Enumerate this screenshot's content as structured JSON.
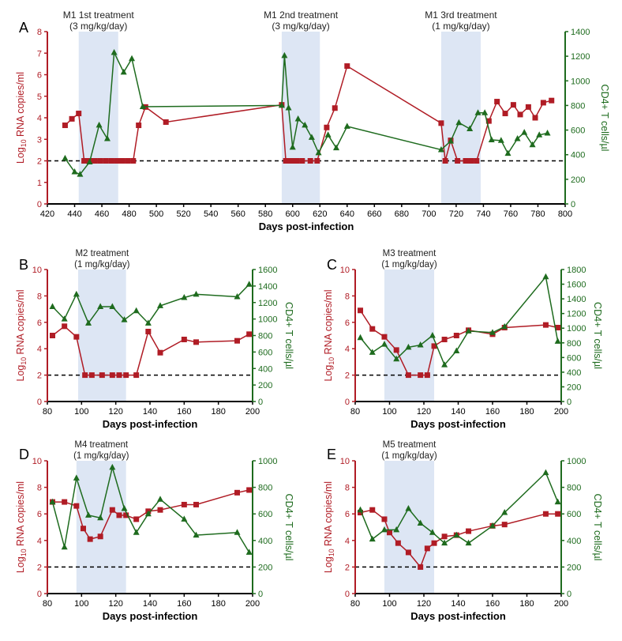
{
  "colors": {
    "rna": "#b01c25",
    "cd4": "#1e6b1e",
    "shade": "#dde6f4",
    "axis": "#000000"
  },
  "chart_data": [
    {
      "panel": "A",
      "type": "line",
      "xlabel": "Days post-infection",
      "ylabel_left": "Log10 RNA copies/ml",
      "ylabel_right": "CD4+ T cells/µl",
      "xlim": [
        420,
        800
      ],
      "ylim_left": [
        0,
        8
      ],
      "ylim_right": [
        0,
        1400
      ],
      "xticks": [
        420,
        440,
        460,
        480,
        500,
        520,
        540,
        560,
        580,
        600,
        620,
        640,
        660,
        680,
        700,
        720,
        740,
        760,
        780,
        800
      ],
      "yticks_left": [
        0,
        1,
        2,
        3,
        4,
        5,
        6,
        7,
        8
      ],
      "yticks_right": [
        0,
        200,
        400,
        600,
        800,
        1000,
        1200,
        1400
      ],
      "detection_limit": 2,
      "treatments": [
        {
          "label1": "M1 1st treatment",
          "label2": "(3 mg/kg/day)",
          "start": 443,
          "end": 472
        },
        {
          "label1": "M1 2nd treatment",
          "label2": "(3 mg/kg/day)",
          "start": 592,
          "end": 620
        },
        {
          "label1": "M1 3rd treatment",
          "label2": "(1 mg/kg/day)",
          "start": 709,
          "end": 738
        }
      ],
      "series": [
        {
          "axis": "left",
          "marker": "square",
          "x": [
            433,
            438,
            443,
            447,
            451,
            455,
            459,
            463,
            467,
            471,
            475,
            479,
            483,
            487,
            492,
            507,
            592,
            595,
            599,
            603,
            607,
            613,
            618,
            625,
            631,
            640,
            709,
            712,
            716,
            721,
            727,
            731,
            735,
            744,
            750,
            756,
            762,
            767,
            773,
            778,
            784,
            790
          ],
          "y": [
            3.65,
            3.95,
            4.2,
            2.0,
            2.0,
            2.0,
            2.0,
            2.0,
            2.0,
            2.0,
            2.0,
            2.0,
            2.0,
            3.65,
            4.5,
            3.8,
            4.6,
            2.0,
            2.0,
            2.0,
            2.0,
            2.0,
            2.0,
            3.55,
            4.45,
            6.4,
            3.75,
            2.0,
            2.95,
            2.0,
            2.0,
            2.0,
            2.0,
            3.85,
            4.75,
            4.2,
            4.6,
            4.15,
            4.5,
            4.0,
            4.7,
            4.8
          ]
        },
        {
          "axis": "right",
          "marker": "triangle",
          "x": [
            433,
            440,
            444,
            451,
            458,
            464,
            469,
            476,
            482,
            490,
            592,
            594,
            597,
            600,
            604,
            609,
            614,
            619,
            626,
            632,
            640,
            709,
            716,
            722,
            730,
            736,
            741,
            746,
            753,
            758,
            765,
            770,
            776,
            781,
            787
          ],
          "y": [
            370,
            260,
            240,
            340,
            640,
            530,
            1230,
            1070,
            1180,
            790,
            800,
            1205,
            780,
            460,
            690,
            640,
            540,
            415,
            560,
            455,
            630,
            440,
            510,
            660,
            610,
            740,
            740,
            520,
            515,
            410,
            530,
            580,
            480,
            560,
            575
          ]
        }
      ]
    },
    {
      "panel": "B",
      "type": "line",
      "xlabel": "Days post-infection",
      "ylabel_left": "Log10 RNA copies/ml",
      "ylabel_right": "CD4+ T cells/µl",
      "xlim": [
        80,
        200
      ],
      "ylim_left": [
        0,
        10
      ],
      "ylim_right": [
        0,
        1600
      ],
      "xticks": [
        80,
        100,
        120,
        140,
        160,
        180,
        200
      ],
      "yticks_left": [
        0,
        2,
        4,
        6,
        8,
        10
      ],
      "yticks_right": [
        0,
        200,
        400,
        600,
        800,
        1000,
        1200,
        1400,
        1600
      ],
      "detection_limit": 2,
      "treatments": [
        {
          "label1": "M2 treatment",
          "label2": "(1 mg/kg/day)",
          "start": 98,
          "end": 126
        }
      ],
      "series": [
        {
          "axis": "left",
          "marker": "square",
          "x": [
            83,
            90,
            97,
            102,
            106,
            112,
            118,
            122,
            126,
            132,
            139,
            146,
            160,
            167,
            191,
            198
          ],
          "y": [
            5.0,
            5.7,
            4.9,
            2.0,
            2.0,
            2.0,
            2.0,
            2.0,
            2.0,
            2.0,
            5.3,
            3.7,
            4.7,
            4.5,
            4.6,
            5.1
          ]
        },
        {
          "axis": "right",
          "marker": "triangle",
          "x": [
            83,
            90,
            97,
            104,
            111,
            118,
            125,
            132,
            139,
            146,
            160,
            167,
            191,
            198
          ],
          "y": [
            1150,
            1000,
            1300,
            950,
            1150,
            1150,
            990,
            1100,
            950,
            1160,
            1260,
            1300,
            1270,
            1420
          ]
        }
      ]
    },
    {
      "panel": "C",
      "type": "line",
      "xlabel": "Days post-infection",
      "ylabel_left": "Log10 RNA copies/ml",
      "ylabel_right": "CD4+ T cells/µl",
      "xlim": [
        80,
        200
      ],
      "ylim_left": [
        0,
        10
      ],
      "ylim_right": [
        0,
        1800
      ],
      "xticks": [
        80,
        100,
        120,
        140,
        160,
        180,
        200
      ],
      "yticks_left": [
        0,
        2,
        4,
        6,
        8,
        10
      ],
      "yticks_right": [
        0,
        200,
        400,
        600,
        800,
        1000,
        1200,
        1400,
        1600,
        1800
      ],
      "detection_limit": 2,
      "treatments": [
        {
          "label1": "M3 treatment",
          "label2": "(1 mg/kg/day)",
          "start": 97,
          "end": 126
        }
      ],
      "series": [
        {
          "axis": "left",
          "marker": "square",
          "x": [
            83,
            90,
            97,
            104,
            111,
            118,
            122,
            126,
            132,
            139,
            146,
            160,
            167,
            191,
            198
          ],
          "y": [
            6.9,
            5.5,
            4.9,
            3.9,
            2.0,
            2.0,
            2.0,
            4.2,
            4.7,
            5.0,
            5.4,
            5.1,
            5.6,
            5.8,
            5.6
          ]
        },
        {
          "axis": "right",
          "marker": "triangle",
          "x": [
            83,
            90,
            97,
            104,
            111,
            118,
            125,
            132,
            139,
            146,
            160,
            167,
            191,
            198
          ],
          "y": [
            870,
            670,
            780,
            580,
            740,
            770,
            900,
            500,
            690,
            960,
            940,
            1020,
            1700,
            820
          ]
        }
      ]
    },
    {
      "panel": "D",
      "type": "line",
      "xlabel": "Days post-infection",
      "ylabel_left": "Log10 RNA copies/ml",
      "ylabel_right": "CD4+ T cells/µl",
      "xlim": [
        80,
        200
      ],
      "ylim_left": [
        0,
        10
      ],
      "ylim_right": [
        0,
        1000
      ],
      "xticks": [
        80,
        100,
        120,
        140,
        160,
        180,
        200
      ],
      "yticks_left": [
        0,
        2,
        4,
        6,
        8,
        10
      ],
      "yticks_right": [
        0,
        200,
        400,
        600,
        800,
        1000
      ],
      "detection_limit": 2,
      "treatments": [
        {
          "label1": "M4 treatment",
          "label2": "(1 mg/kg/day)",
          "start": 97,
          "end": 126
        }
      ],
      "series": [
        {
          "axis": "left",
          "marker": "square",
          "x": [
            83,
            90,
            97,
            101,
            105,
            111,
            118,
            122,
            126,
            132,
            139,
            146,
            160,
            167,
            191,
            198
          ],
          "y": [
            6.9,
            6.9,
            6.6,
            4.9,
            4.1,
            4.3,
            6.3,
            5.9,
            5.9,
            5.6,
            6.2,
            6.3,
            6.7,
            6.7,
            7.6,
            7.8
          ]
        },
        {
          "axis": "right",
          "marker": "triangle",
          "x": [
            83,
            90,
            97,
            104,
            111,
            118,
            125,
            132,
            139,
            146,
            160,
            167,
            191,
            198
          ],
          "y": [
            690,
            350,
            870,
            590,
            570,
            950,
            640,
            460,
            600,
            710,
            560,
            440,
            460,
            310
          ]
        }
      ]
    },
    {
      "panel": "E",
      "type": "line",
      "xlabel": "Days post-infection",
      "ylabel_left": "Log10 RNA copies/ml",
      "ylabel_right": "CD4+ T cells/µl",
      "xlim": [
        80,
        200
      ],
      "ylim_left": [
        0,
        10
      ],
      "ylim_right": [
        0,
        1000
      ],
      "xticks": [
        80,
        100,
        120,
        140,
        160,
        180,
        200
      ],
      "yticks_left": [
        0,
        2,
        4,
        6,
        8,
        10
      ],
      "yticks_right": [
        0,
        200,
        400,
        600,
        800,
        1000
      ],
      "detection_limit": 2,
      "treatments": [
        {
          "label1": "M5 treatment",
          "label2": "(1 mg/kg/day)",
          "start": 97,
          "end": 126
        }
      ],
      "series": [
        {
          "axis": "left",
          "marker": "square",
          "x": [
            83,
            90,
            97,
            100,
            105,
            111,
            118,
            122,
            126,
            132,
            139,
            146,
            160,
            167,
            191,
            198
          ],
          "y": [
            6.1,
            6.3,
            5.6,
            4.6,
            3.8,
            3.1,
            2.0,
            3.4,
            3.8,
            4.3,
            4.4,
            4.7,
            5.1,
            5.2,
            6.0,
            6.0
          ]
        },
        {
          "axis": "right",
          "marker": "triangle",
          "x": [
            83,
            90,
            97,
            104,
            111,
            118,
            125,
            132,
            139,
            146,
            160,
            167,
            191,
            198
          ],
          "y": [
            630,
            410,
            480,
            480,
            640,
            530,
            460,
            380,
            440,
            380,
            510,
            610,
            910,
            690
          ]
        }
      ]
    }
  ]
}
